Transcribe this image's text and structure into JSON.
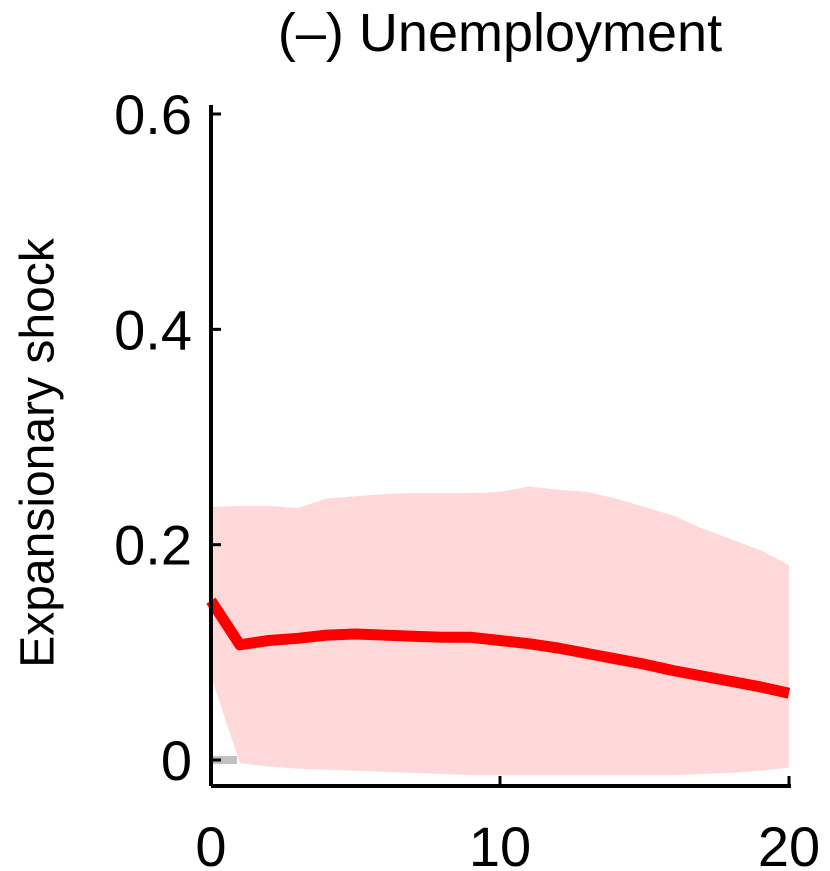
{
  "chart_data": {
    "type": "line",
    "title": "(–) Unemployment",
    "ylabel": "Expansionary shock",
    "xlabel": "",
    "xlim": [
      0,
      20
    ],
    "ylim": [
      -0.02,
      0.6
    ],
    "x_ticks": [
      0,
      10,
      20
    ],
    "y_ticks": [
      0,
      0.2,
      0.4,
      0.6
    ],
    "y_tick_labels": [
      "0",
      "0.2",
      "0.4",
      "0.6"
    ],
    "grid": false,
    "colors": {
      "line": "#ff0000",
      "band": "#ffd9d9",
      "zero_line": "#c0c0c0"
    },
    "x": [
      0,
      1,
      2,
      3,
      4,
      5,
      6,
      7,
      8,
      9,
      10,
      11,
      12,
      13,
      14,
      15,
      16,
      17,
      18,
      19,
      20
    ],
    "series": [
      {
        "values": [
          0.148,
          0.107,
          0.111,
          0.113,
          0.116,
          0.117,
          0.116,
          0.115,
          0.114,
          0.114,
          0.111,
          0.108,
          0.104,
          0.099,
          0.094,
          0.089,
          0.083,
          0.078,
          0.073,
          0.068,
          0.062
        ]
      }
    ],
    "band": {
      "upper": [
        0.235,
        0.236,
        0.236,
        0.234,
        0.243,
        0.245,
        0.247,
        0.248,
        0.248,
        0.248,
        0.249,
        0.254,
        0.251,
        0.249,
        0.243,
        0.235,
        0.227,
        0.215,
        0.205,
        0.195,
        0.181
      ],
      "lower": [
        0.078,
        -0.003,
        -0.006,
        -0.008,
        -0.009,
        -0.01,
        -0.011,
        -0.012,
        -0.013,
        -0.014,
        -0.014,
        -0.014,
        -0.014,
        -0.014,
        -0.014,
        -0.014,
        -0.014,
        -0.013,
        -0.012,
        -0.01,
        -0.007
      ]
    }
  }
}
